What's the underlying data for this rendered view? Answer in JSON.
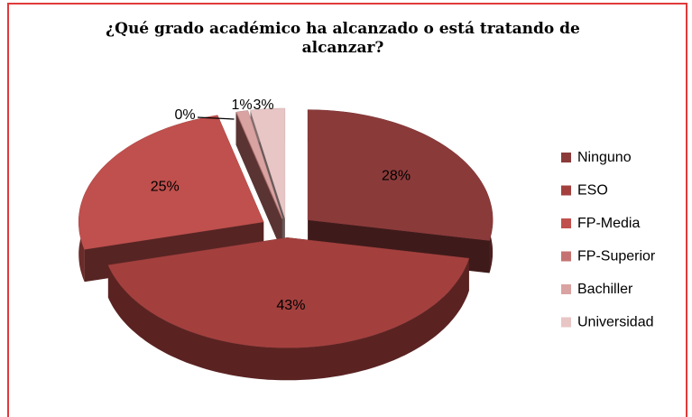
{
  "chart_data": {
    "type": "pie3d",
    "title": "¿Qué grado académico ha alcanzado o está tratando de alcanzar?",
    "categories": [
      "Ninguno",
      "ESO",
      "FP-Media",
      "FP-Superior",
      "Bachiller",
      "Universidad"
    ],
    "values": [
      28,
      43,
      25,
      0,
      1,
      3
    ],
    "value_labels": [
      "28%",
      "43%",
      "25%",
      "0%",
      "1%",
      "3%"
    ],
    "colors": [
      "#8b3a3a",
      "#a3403e",
      "#c0504d",
      "#c57372",
      "#d9a3a2",
      "#e8c6c5"
    ],
    "legend": "right"
  }
}
